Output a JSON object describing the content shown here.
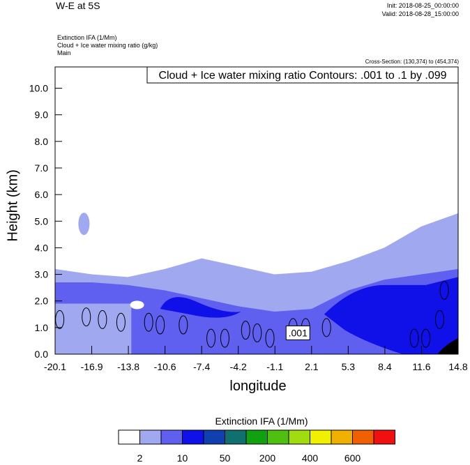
{
  "header": {
    "title": "W-E at 5S",
    "init": "Init: 2018-08-25_00:00:00",
    "valid": "Valid: 2018-08-28_15:00:00",
    "subtitle_lines": [
      "Extinction IFA   (1/Mm)",
      "Cloud + Ice water mixing ratio   (g/kg)",
      "Main"
    ],
    "cross_section": "Cross-Section: (130,374) to (454,374)"
  },
  "chart_data": {
    "type": "heatmap",
    "title": "W-E at 5S",
    "xlabel": "longitude",
    "ylabel": "Height (km)",
    "xlim": [
      -20.1,
      14.8
    ],
    "ylim": [
      0.0,
      10.8
    ],
    "x_ticks": [
      "-20.1",
      "-16.9",
      "-13.8",
      "-10.6",
      "-7.4",
      "-4.2",
      "-1.1",
      "2.1",
      "5.3",
      "8.4",
      "11.6",
      "14.8"
    ],
    "y_ticks": [
      "0.0",
      "1.0",
      "2.0",
      "3.0",
      "4.0",
      "5.0",
      "6.0",
      "7.0",
      "8.0",
      "9.0",
      "10.0"
    ],
    "contour_info": "Cloud + Ice water mixing ratio Contours: .001 to .1 by .099",
    "contour_label": ".001",
    "colorbar": {
      "title": "Extinction IFA  (1/Mm)",
      "labels": [
        "2",
        "10",
        "50",
        "200",
        "400",
        "600"
      ],
      "colors": [
        "#ffffff",
        "#a0a8f0",
        "#6060f0",
        "#1010e8",
        "#1040b0",
        "#107070",
        "#10a010",
        "#50c010",
        "#a0dc10",
        "#f0f000",
        "#f0b000",
        "#f06000",
        "#f01010"
      ]
    },
    "layer_tops_km": {
      "x": [
        -20.1,
        -16.9,
        -13.8,
        -10.6,
        -7.4,
        -4.2,
        -1.1,
        2.1,
        5.3,
        8.4,
        11.6,
        14.8
      ],
      "level1": [
        3.2,
        3.0,
        2.9,
        3.2,
        3.6,
        3.3,
        3.0,
        3.1,
        3.5,
        4.0,
        4.8,
        5.3
      ],
      "level2": [
        2.7,
        2.7,
        2.6,
        2.4,
        2.1,
        1.8,
        1.6,
        1.7,
        2.4,
        2.8,
        3.0,
        3.2
      ],
      "level3": [
        0.0,
        0.0,
        0.0,
        2.2,
        1.9,
        1.4,
        0.0,
        0.0,
        1.8,
        2.6,
        2.8,
        2.9
      ]
    }
  }
}
